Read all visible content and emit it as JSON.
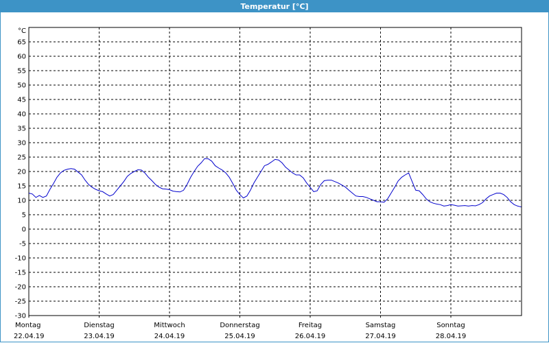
{
  "title": "Temperatur [°C]",
  "chart_data": {
    "type": "line",
    "title": "Temperatur [°C]",
    "ylabel": "°C",
    "xlabel": "",
    "ylim": [
      -30,
      70
    ],
    "yticks": [
      65,
      60,
      55,
      50,
      45,
      40,
      35,
      30,
      25,
      20,
      15,
      10,
      5,
      0,
      -5,
      -10,
      -15,
      -20,
      -25,
      -30
    ],
    "grid": true,
    "x_unit": "days",
    "xlim": [
      0,
      7.06
    ],
    "x_ticks": [
      {
        "day": "Montag",
        "date": "22.04.19"
      },
      {
        "day": "Dienstag",
        "date": "23.04.19"
      },
      {
        "day": "Mittwoch",
        "date": "24.04.19"
      },
      {
        "day": "Donnerstag",
        "date": "25.04.19"
      },
      {
        "day": "Freitag",
        "date": "26.04.19"
      },
      {
        "day": "Samstag",
        "date": "27.04.19"
      },
      {
        "day": "Sonntag",
        "date": "28.04.19"
      }
    ],
    "series": [
      {
        "color": "#0000cc",
        "x": [
          0.0,
          0.05,
          0.1,
          0.15,
          0.2,
          0.25,
          0.3,
          0.35,
          0.4,
          0.45,
          0.5,
          0.55,
          0.6,
          0.65,
          0.7,
          0.75,
          0.8,
          0.85,
          0.9,
          0.95,
          1.0,
          1.05,
          1.1,
          1.15,
          1.2,
          1.25,
          1.3,
          1.35,
          1.4,
          1.45,
          1.5,
          1.55,
          1.6,
          1.65,
          1.7,
          1.75,
          1.8,
          1.85,
          1.9,
          1.95,
          2.0,
          2.05,
          2.1,
          2.15,
          2.2,
          2.25,
          2.3,
          2.35,
          2.4,
          2.45,
          2.5,
          2.55,
          2.6,
          2.65,
          2.7,
          2.75,
          2.8,
          2.85,
          2.9,
          2.95,
          3.0,
          3.05,
          3.1,
          3.15,
          3.2,
          3.25,
          3.3,
          3.35,
          3.4,
          3.45,
          3.5,
          3.55,
          3.6,
          3.65,
          3.7,
          3.75,
          3.8,
          3.85,
          3.9,
          3.95,
          4.0,
          4.05,
          4.1,
          4.15,
          4.2,
          4.25,
          4.3,
          4.35,
          4.4,
          4.45,
          4.5,
          4.55,
          4.6,
          4.65,
          4.7,
          4.75,
          4.8,
          4.85,
          4.9,
          4.95,
          5.0,
          5.05,
          5.1,
          5.15,
          5.2,
          5.25,
          5.3,
          5.35,
          5.4,
          5.45,
          5.5,
          5.55,
          5.6,
          5.65,
          5.7,
          5.75,
          5.8,
          5.85,
          5.9,
          5.95,
          6.0,
          6.05,
          6.1,
          6.15,
          6.2,
          6.25,
          6.3,
          6.35,
          6.4,
          6.45,
          6.5,
          6.55,
          6.6,
          6.65,
          6.7,
          6.75,
          6.8,
          6.85,
          6.9,
          6.95,
          7.0
        ],
        "y": [
          12.5,
          12.2,
          11.0,
          11.7,
          11.0,
          11.5,
          13.8,
          15.8,
          18.0,
          19.5,
          20.4,
          20.8,
          21.0,
          20.8,
          19.8,
          18.8,
          17.0,
          15.5,
          14.5,
          13.8,
          13.3,
          13.0,
          12.2,
          11.5,
          12.0,
          13.5,
          15.0,
          16.5,
          18.3,
          19.3,
          20.0,
          20.6,
          20.5,
          19.5,
          18.0,
          16.8,
          15.5,
          14.6,
          14.0,
          13.9,
          13.7,
          13.2,
          13.0,
          12.9,
          13.5,
          15.5,
          18.0,
          20.0,
          21.8,
          23.0,
          24.5,
          24.4,
          23.6,
          22.0,
          21.2,
          20.5,
          19.5,
          18.0,
          15.8,
          13.5,
          12.0,
          10.8,
          11.5,
          13.5,
          16.0,
          18.0,
          20.0,
          22.0,
          22.5,
          23.3,
          24.2,
          24.0,
          23.0,
          21.5,
          20.5,
          19.5,
          18.8,
          18.8,
          17.8,
          16.0,
          14.5,
          13.0,
          13.3,
          15.5,
          16.8,
          17.0,
          17.0,
          16.5,
          16.0,
          15.3,
          14.6,
          13.5,
          12.5,
          11.5,
          11.3,
          11.3,
          11.0,
          10.5,
          10.0,
          9.5,
          9.5,
          9.3,
          10.5,
          12.5,
          14.5,
          16.7,
          18.0,
          18.8,
          19.5,
          16.5,
          13.5,
          13.3,
          12.0,
          10.5,
          9.5,
          9.0,
          8.7,
          8.5,
          8.0,
          8.2,
          8.5,
          8.3,
          8.0,
          8.1,
          8.2,
          8.0,
          8.2,
          8.1,
          8.5,
          9.2,
          10.5,
          11.5,
          12.0,
          12.5,
          12.5,
          12.0,
          11.0,
          9.5,
          8.5,
          8.0,
          7.7
        ]
      }
    ]
  }
}
